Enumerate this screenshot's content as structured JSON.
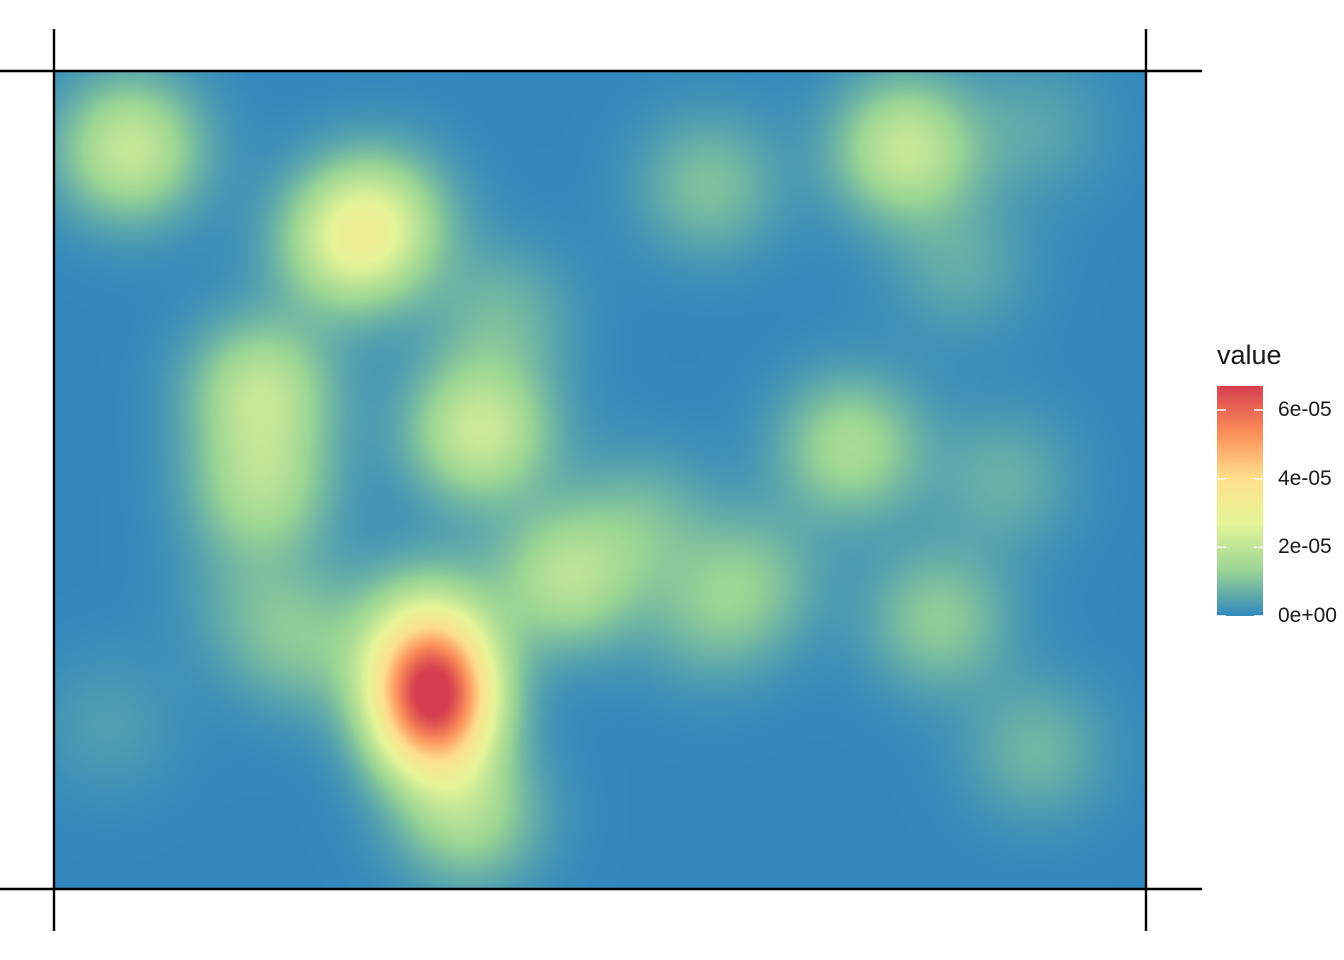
{
  "chart_data": {
    "type": "heatmap",
    "title": "",
    "xlabel": "",
    "ylabel": "",
    "grid": false,
    "xlim": [
      0,
      1
    ],
    "ylim": [
      0,
      1
    ],
    "colormap": [
      "#3288bd",
      "#99d594",
      "#e6f598",
      "#fee08b",
      "#fc8d59",
      "#d53e4f"
    ],
    "legend": {
      "title": "value",
      "position": "right",
      "min": 0,
      "max": 6.7e-05,
      "ticks": [
        {
          "value": 0,
          "label": "0e+00"
        },
        {
          "value": 2e-05,
          "label": "2e-05"
        },
        {
          "value": 4e-05,
          "label": "4e-05"
        },
        {
          "value": 6e-05,
          "label": "6e-05"
        }
      ]
    },
    "hotspots": [
      {
        "x": 0.347,
        "y": 0.234,
        "value": 6.7e-05
      },
      {
        "x": 0.34,
        "y": 0.32,
        "value": 1.2e-05
      },
      {
        "x": 0.38,
        "y": 0.09,
        "value": 1.5e-05
      },
      {
        "x": 0.23,
        "y": 0.3,
        "value": 9e-06
      },
      {
        "x": 0.47,
        "y": 0.38,
        "value": 1.8e-05
      },
      {
        "x": 0.54,
        "y": 0.45,
        "value": 8e-06
      },
      {
        "x": 0.6,
        "y": 0.33,
        "value": 7e-06
      },
      {
        "x": 0.07,
        "y": 0.905,
        "value": 2.1e-05
      },
      {
        "x": 0.27,
        "y": 0.79,
        "value": 2e-05
      },
      {
        "x": 0.3,
        "y": 0.82,
        "value": 1.5e-05
      },
      {
        "x": 0.41,
        "y": 0.7,
        "value": 8e-06
      },
      {
        "x": 0.6,
        "y": 0.86,
        "value": 1e-05
      },
      {
        "x": 0.78,
        "y": 0.905,
        "value": 2.1e-05
      },
      {
        "x": 0.9,
        "y": 0.93,
        "value": 5e-06
      },
      {
        "x": 0.83,
        "y": 0.76,
        "value": 6e-06
      },
      {
        "x": 0.19,
        "y": 0.61,
        "value": 1.9e-05
      },
      {
        "x": 0.19,
        "y": 0.49,
        "value": 1.6e-05
      },
      {
        "x": 0.39,
        "y": 0.56,
        "value": 2.2e-05
      },
      {
        "x": 0.73,
        "y": 0.54,
        "value": 1.6e-05
      },
      {
        "x": 0.87,
        "y": 0.5,
        "value": 7e-06
      },
      {
        "x": 0.64,
        "y": 0.38,
        "value": 9e-06
      },
      {
        "x": 0.81,
        "y": 0.33,
        "value": 1.2e-05
      },
      {
        "x": 0.9,
        "y": 0.17,
        "value": 8e-06
      },
      {
        "x": 0.05,
        "y": 0.2,
        "value": 4e-06
      },
      {
        "x": 0.18,
        "y": 0.35,
        "value": 5e-06
      }
    ]
  }
}
